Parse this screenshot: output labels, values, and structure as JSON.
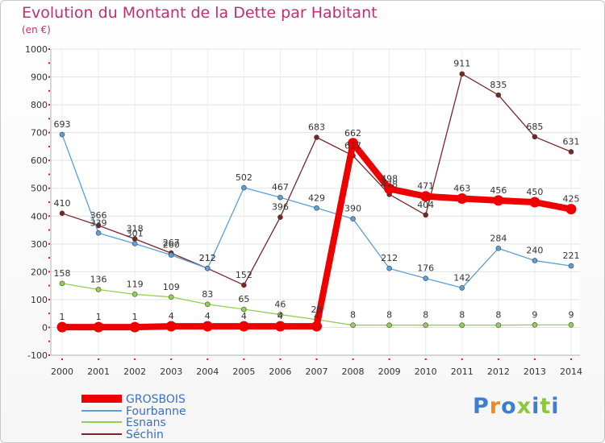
{
  "title": "Evolution du Montant de la Dette par Habitant",
  "subtitle": "(en €)",
  "logo_text": "Proxiti",
  "chart_data": {
    "type": "line",
    "title": "Evolution du Montant de la Dette par Habitant",
    "subtitle": "(en €)",
    "xlabel": "",
    "ylabel": "",
    "categories": [
      "2000",
      "2001",
      "2002",
      "2003",
      "2004",
      "2005",
      "2006",
      "2007",
      "2008",
      "2009",
      "2010",
      "2011",
      "2012",
      "2013",
      "2014"
    ],
    "ylim": [
      -100,
      1000
    ],
    "yticks": [
      -100,
      0,
      100,
      200,
      300,
      400,
      500,
      600,
      700,
      800,
      900,
      1000
    ],
    "grid": true,
    "legend_position": "bottom-left",
    "series": [
      {
        "name": "GROSBOIS",
        "color": "#ee0000",
        "values": [
          1,
          1,
          1,
          4,
          4,
          4,
          4,
          4,
          662,
          498,
          471,
          463,
          456,
          450,
          425
        ]
      },
      {
        "name": "Fourbanne",
        "color": "#5b9fd6",
        "values": [
          693,
          339,
          301,
          260,
          212,
          502,
          467,
          429,
          390,
          212,
          176,
          142,
          284,
          240,
          221
        ]
      },
      {
        "name": "Esnans",
        "color": "#92d050",
        "values": [
          158,
          136,
          119,
          109,
          83,
          65,
          46,
          28,
          8,
          8,
          8,
          8,
          8,
          9,
          9
        ]
      },
      {
        "name": "Séchin",
        "color": "#7a2528",
        "values": [
          410,
          366,
          318,
          267,
          212,
          152,
          396,
          683,
          617,
          478,
          404,
          911,
          835,
          685,
          631
        ]
      }
    ]
  }
}
